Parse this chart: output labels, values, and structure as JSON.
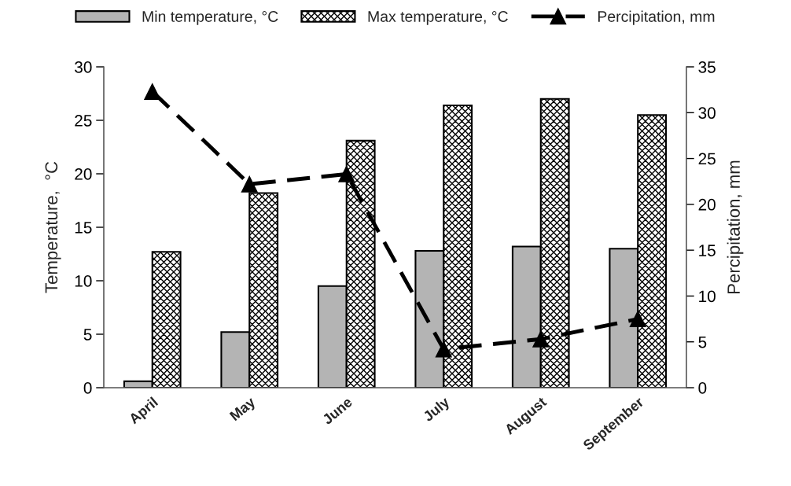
{
  "chart_data": {
    "type": "bar",
    "categories": [
      "April",
      "May",
      "June",
      "July",
      "August",
      "September"
    ],
    "ylabel": "Temperature,  °C",
    "y2label": "Percipitation, mm",
    "ylim": [
      0,
      30
    ],
    "yticks": [
      0,
      5,
      10,
      15,
      20,
      25,
      30
    ],
    "y2lim": [
      0,
      35
    ],
    "y2ticks": [
      0,
      5,
      10,
      15,
      20,
      25,
      30,
      35
    ],
    "series": [
      {
        "name": "Min temperature, °C",
        "color": "#b4b4b4",
        "values": [
          0.6,
          5.2,
          9.5,
          12.8,
          13.2,
          13.0
        ]
      },
      {
        "name": "Max temperature, °C",
        "color": "#000000",
        "values": [
          12.7,
          18.2,
          23.1,
          26.4,
          27.0,
          25.5
        ]
      },
      {
        "name": "Percipitation, mm",
        "type": "line",
        "axis": "y2",
        "color": "#000000",
        "marker": "triangle",
        "line_style": "dashed",
        "values": [
          32.3,
          22.2,
          23.3,
          4.2,
          5.3,
          7.5
        ]
      }
    ],
    "grid": false,
    "legend": "top"
  }
}
